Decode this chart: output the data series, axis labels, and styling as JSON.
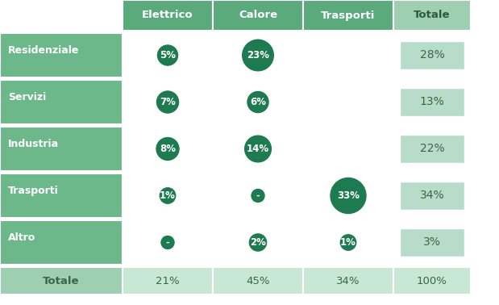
{
  "header_labels": [
    "Elettrico",
    "Calore",
    "Trasporti",
    "Totale"
  ],
  "row_labels": [
    "Residenziale",
    "Servizi",
    "Industria",
    "Trasporti",
    "Altro"
  ],
  "circle_texts": [
    [
      "5%",
      "23%",
      "",
      ""
    ],
    [
      "7%",
      "6%",
      "",
      ""
    ],
    [
      "8%",
      "14%",
      "",
      ""
    ],
    [
      "1%",
      "-",
      "33%",
      ""
    ],
    [
      "-",
      "2%",
      "1%",
      ""
    ]
  ],
  "circle_vals": [
    [
      5,
      23,
      0,
      0
    ],
    [
      7,
      6,
      0,
      0
    ],
    [
      8,
      14,
      0,
      0
    ],
    [
      1,
      0,
      33,
      0
    ],
    [
      0,
      2,
      1,
      0
    ]
  ],
  "totale_texts": [
    "28%",
    "13%",
    "22%",
    "34%",
    "3%"
  ],
  "totals_row": [
    "21%",
    "45%",
    "34%",
    "100%"
  ],
  "header_bg": "#5aaa7c",
  "row_label_bg": "#6db88a",
  "data_cell_bg": "#ffffff",
  "totale_box_bg": "#b8dcca",
  "total_row_label_bg": "#9ecfb2",
  "total_row_data_bg": "#d4edd e",
  "circle_color": "#1e7a50",
  "circle_text_color": "#ffffff",
  "totale_col_header_bg": "#9ecfb2",
  "totale_col_header_text": "#2d5a3d",
  "header_text_color": "#ffffff",
  "row_label_text_color": "#ffffff",
  "total_row_text_color": "#3a6645",
  "totale_text_color": "#3a6645",
  "border_color": "#ffffff",
  "fig_bg": "#ffffff",
  "total_row_cell_bg": "#c8e8d5"
}
